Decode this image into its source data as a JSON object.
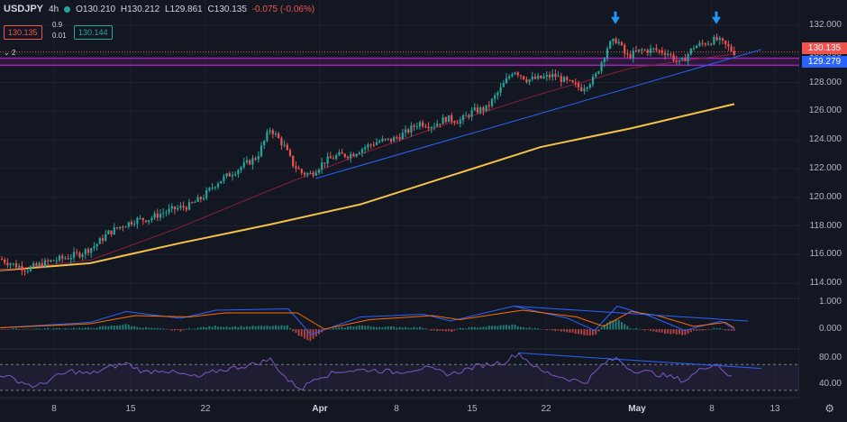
{
  "header": {
    "symbol": "USDJPY",
    "interval": "4h",
    "open": "O130.210",
    "high": "H130.212",
    "low": "L129.861",
    "close": "C130.135",
    "change": "-0.075 (-0.06%)",
    "bid": "130.135",
    "ask": "130.144",
    "spread_top": "0.9",
    "spread_bottom": "0.01",
    "indicator_count": "2"
  },
  "colors": {
    "background": "#131722",
    "up": "#26a69a",
    "down": "#ef5350",
    "ma_long": "#f7c04a",
    "ma_short": "#8a1d3a",
    "trendline": "#2962ff",
    "zone": "#9c27b0",
    "rsi": "#7e57c2",
    "macd": "#2962ff",
    "signal": "#ff6d00"
  },
  "price_tags": {
    "last": "130.135",
    "level": "129.279"
  },
  "chart_data": [
    {
      "type": "candlestick",
      "title": "",
      "x": [
        "8",
        "15",
        "22",
        "Apr",
        "8",
        "15",
        "22",
        "May",
        "8",
        "13"
      ],
      "yticks": [
        "132.000",
        "130.000",
        "128.000",
        "126.000",
        "124.000",
        "122.000",
        "120.000",
        "118.000",
        "116.000",
        "114.000"
      ],
      "ylim": [
        113.0,
        133.0
      ],
      "close_path": [
        [
          0,
          115.7
        ],
        [
          15,
          115.3
        ],
        [
          30,
          115.0
        ],
        [
          45,
          115.3
        ],
        [
          60,
          115.6
        ],
        [
          75,
          115.8
        ],
        [
          90,
          116.1
        ],
        [
          105,
          116.6
        ],
        [
          120,
          117.5
        ],
        [
          135,
          118.0
        ],
        [
          150,
          118.4
        ],
        [
          165,
          118.5
        ],
        [
          180,
          118.9
        ],
        [
          195,
          119.2
        ],
        [
          210,
          119.4
        ],
        [
          225,
          120.0
        ],
        [
          240,
          121.0
        ],
        [
          255,
          121.6
        ],
        [
          270,
          122.2
        ],
        [
          285,
          122.8
        ],
        [
          300,
          124.8
        ],
        [
          315,
          123.6
        ],
        [
          325,
          122.3
        ],
        [
          335,
          121.7
        ],
        [
          345,
          121.6
        ],
        [
          360,
          122.5
        ],
        [
          375,
          122.9
        ],
        [
          390,
          123.0
        ],
        [
          405,
          123.5
        ],
        [
          420,
          123.9
        ],
        [
          435,
          124.0
        ],
        [
          450,
          124.5
        ],
        [
          465,
          125.2
        ],
        [
          480,
          125.0
        ],
        [
          495,
          125.5
        ],
        [
          510,
          125.3
        ],
        [
          525,
          126.0
        ],
        [
          540,
          126.2
        ],
        [
          555,
          127.5
        ],
        [
          570,
          128.9
        ],
        [
          585,
          128.2
        ],
        [
          600,
          128.3
        ],
        [
          615,
          128.5
        ],
        [
          630,
          128.0
        ],
        [
          645,
          127.6
        ],
        [
          660,
          128.3
        ],
        [
          675,
          130.6
        ],
        [
          685,
          131.0
        ],
        [
          695,
          129.8
        ],
        [
          710,
          130.2
        ],
        [
          725,
          130.3
        ],
        [
          740,
          130.1
        ],
        [
          755,
          129.3
        ],
        [
          770,
          130.5
        ],
        [
          785,
          130.8
        ],
        [
          795,
          131.0
        ],
        [
          805,
          130.6
        ],
        [
          815,
          130.1
        ]
      ],
      "series": [
        {
          "name": "",
          "values": [
            [
              0,
              114.9
            ],
            [
              100,
              115.4
            ],
            [
              200,
              116.8
            ],
            [
              300,
              118.1
            ],
            [
              400,
              119.5
            ],
            [
              500,
              121.5
            ],
            [
              600,
              123.5
            ],
            [
              700,
              124.8
            ],
            [
              815,
              126.5
            ]
          ]
        },
        {
          "name": "",
          "values": [
            [
              0,
              114.9
            ],
            [
              100,
              115.6
            ],
            [
              200,
              117.9
            ],
            [
              300,
              120.5
            ],
            [
              400,
              123.0
            ],
            [
              500,
              125.2
            ],
            [
              600,
              127.2
            ],
            [
              700,
              129.0
            ],
            [
              815,
              130.0
            ]
          ]
        }
      ],
      "trendline": [
        [
          350,
          121.3
        ],
        [
          845,
          130.3
        ]
      ],
      "zone": [
        129.2,
        129.7
      ],
      "markers": [
        [
          683,
          132.2
        ],
        [
          795,
          132.2
        ]
      ]
    },
    {
      "type": "line",
      "title": "",
      "yticks": [
        "1.000",
        "0.000"
      ],
      "series": [
        {
          "name": "",
          "values": [
            [
              0,
              0.05
            ],
            [
              100,
              0.25
            ],
            [
              140,
              0.65
            ],
            [
              200,
              0.4
            ],
            [
              240,
              0.7
            ],
            [
              320,
              0.75
            ],
            [
              345,
              -0.2
            ],
            [
              400,
              0.45
            ],
            [
              470,
              0.55
            ],
            [
              500,
              0.3
            ],
            [
              570,
              0.85
            ],
            [
              630,
              0.4
            ],
            [
              660,
              -0.05
            ],
            [
              685,
              0.85
            ],
            [
              720,
              0.5
            ],
            [
              760,
              -0.05
            ],
            [
              800,
              0.3
            ],
            [
              815,
              0.0
            ]
          ]
        },
        {
          "name": "",
          "values": [
            [
              0,
              0.05
            ],
            [
              100,
              0.2
            ],
            [
              150,
              0.5
            ],
            [
              210,
              0.45
            ],
            [
              250,
              0.6
            ],
            [
              330,
              0.6
            ],
            [
              360,
              0.0
            ],
            [
              410,
              0.35
            ],
            [
              480,
              0.5
            ],
            [
              510,
              0.35
            ],
            [
              580,
              0.7
            ],
            [
              640,
              0.45
            ],
            [
              670,
              0.1
            ],
            [
              700,
              0.65
            ],
            [
              730,
              0.5
            ],
            [
              770,
              0.1
            ],
            [
              805,
              0.25
            ],
            [
              815,
              0.05
            ]
          ]
        }
      ],
      "trendline": [
        [
          570,
          0.85
        ],
        [
          830,
          0.3
        ]
      ]
    },
    {
      "type": "line",
      "title": "",
      "yticks": [
        "80.00",
        "40.00"
      ],
      "ylim": [
        20,
        90
      ],
      "levels": [
        70,
        30
      ],
      "series": [
        {
          "name": "",
          "values": [
            [
              0,
              55
            ],
            [
              20,
              45
            ],
            [
              40,
              35
            ],
            [
              60,
              50
            ],
            [
              80,
              60
            ],
            [
              100,
              55
            ],
            [
              120,
              65
            ],
            [
              140,
              72
            ],
            [
              160,
              58
            ],
            [
              180,
              62
            ],
            [
              200,
              55
            ],
            [
              220,
              50
            ],
            [
              240,
              60
            ],
            [
              260,
              65
            ],
            [
              280,
              70
            ],
            [
              300,
              78
            ],
            [
              320,
              45
            ],
            [
              335,
              32
            ],
            [
              350,
              50
            ],
            [
              380,
              60
            ],
            [
              410,
              62
            ],
            [
              440,
              58
            ],
            [
              470,
              65
            ],
            [
              500,
              55
            ],
            [
              530,
              68
            ],
            [
              560,
              74
            ],
            [
              575,
              88
            ],
            [
              600,
              60
            ],
            [
              630,
              48
            ],
            [
              650,
              42
            ],
            [
              670,
              72
            ],
            [
              685,
              80
            ],
            [
              700,
              62
            ],
            [
              720,
              58
            ],
            [
              740,
              52
            ],
            [
              760,
              45
            ],
            [
              780,
              65
            ],
            [
              795,
              72
            ],
            [
              815,
              45
            ]
          ]
        }
      ],
      "trendline": [
        [
          575,
          88
        ],
        [
          845,
          64
        ]
      ]
    }
  ],
  "xaxis": {
    "ticks": [
      {
        "label": "8",
        "pos": 60,
        "bold": false
      },
      {
        "label": "15",
        "pos": 145,
        "bold": false
      },
      {
        "label": "22",
        "pos": 228,
        "bold": false
      },
      {
        "label": "Apr",
        "pos": 355,
        "bold": true
      },
      {
        "label": "8",
        "pos": 440,
        "bold": false
      },
      {
        "label": "15",
        "pos": 524,
        "bold": false
      },
      {
        "label": "22",
        "pos": 606,
        "bold": false
      },
      {
        "label": "May",
        "pos": 707,
        "bold": true
      },
      {
        "label": "8",
        "pos": 790,
        "bold": false
      },
      {
        "label": "13",
        "pos": 860,
        "bold": false
      }
    ]
  }
}
